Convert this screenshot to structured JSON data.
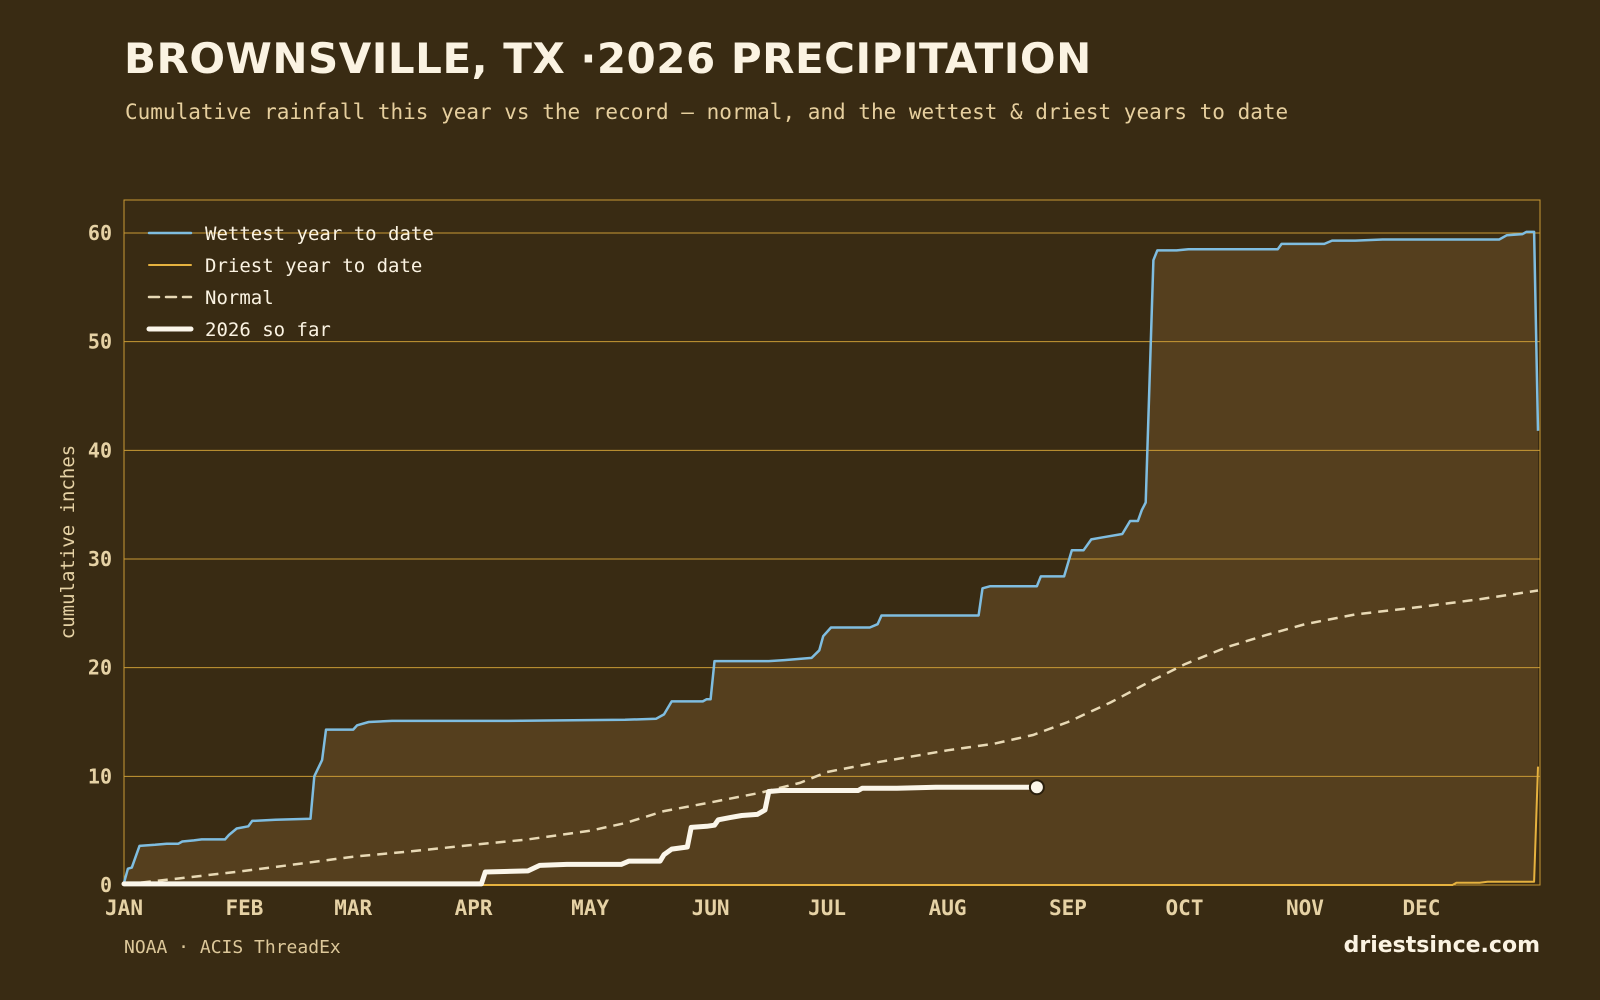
{
  "header": {
    "title": "BROWNSVILLE, TX ·2026 PRECIPITATION",
    "subtitle": "Cumulative rainfall this year vs the record — normal, and the wettest & driest years to date"
  },
  "footer": {
    "source": "NOAA · ACIS ThreadEx",
    "brand": "driestsince.com"
  },
  "colors": {
    "background": "#392b13",
    "grid": "#c99a35",
    "wettest": "#7fbde0",
    "driest": "#e6b23f",
    "normal": "#e8d9b5",
    "current": "#fbf6ea",
    "fill": "#553f1e"
  },
  "chart_data": {
    "type": "line",
    "ylabel": "cumulative inches",
    "xlabel": "",
    "ylim": [
      0,
      63
    ],
    "yticks": [
      0,
      10,
      20,
      30,
      40,
      50,
      60
    ],
    "x_unit": "day of year",
    "xlim": [
      1,
      365
    ],
    "month_ticks": [
      {
        "label": "JAN",
        "day": 1
      },
      {
        "label": "FEB",
        "day": 32
      },
      {
        "label": "MAR",
        "day": 60
      },
      {
        "label": "APR",
        "day": 91
      },
      {
        "label": "MAY",
        "day": 121
      },
      {
        "label": "JUN",
        "day": 152
      },
      {
        "label": "JUL",
        "day": 182
      },
      {
        "label": "AUG",
        "day": 213
      },
      {
        "label": "SEP",
        "day": 244
      },
      {
        "label": "OCT",
        "day": 274
      },
      {
        "label": "NOV",
        "day": 305
      },
      {
        "label": "DEC",
        "day": 335
      }
    ],
    "grid": true,
    "legend_position": "top-left",
    "series": [
      {
        "name": "Wettest year to date",
        "style": "solid",
        "points": [
          [
            1,
            0.2
          ],
          [
            2,
            1.5
          ],
          [
            3,
            1.6
          ],
          [
            5,
            3.6
          ],
          [
            9,
            3.7
          ],
          [
            12,
            3.8
          ],
          [
            15,
            3.8
          ],
          [
            16,
            4.0
          ],
          [
            19,
            4.1
          ],
          [
            21,
            4.2
          ],
          [
            27,
            4.2
          ],
          [
            28,
            4.6
          ],
          [
            30,
            5.2
          ],
          [
            33,
            5.4
          ],
          [
            34,
            5.9
          ],
          [
            40,
            6.0
          ],
          [
            49,
            6.1
          ],
          [
            50,
            10.0
          ],
          [
            52,
            11.5
          ],
          [
            53,
            14.3
          ],
          [
            60,
            14.3
          ],
          [
            61,
            14.7
          ],
          [
            64,
            15.0
          ],
          [
            70,
            15.1
          ],
          [
            100,
            15.1
          ],
          [
            130,
            15.2
          ],
          [
            138,
            15.3
          ],
          [
            140,
            15.7
          ],
          [
            142,
            16.9
          ],
          [
            150,
            16.9
          ],
          [
            151,
            17.1
          ],
          [
            152,
            17.1
          ],
          [
            153,
            20.6
          ],
          [
            167,
            20.6
          ],
          [
            171,
            20.7
          ],
          [
            178,
            20.9
          ],
          [
            180,
            21.6
          ],
          [
            181,
            22.9
          ],
          [
            183,
            23.7
          ],
          [
            193,
            23.7
          ],
          [
            195,
            24.0
          ],
          [
            196,
            24.8
          ],
          [
            221,
            24.8
          ],
          [
            222,
            27.3
          ],
          [
            224,
            27.5
          ],
          [
            236,
            27.5
          ],
          [
            237,
            28.4
          ],
          [
            243,
            28.4
          ],
          [
            245,
            30.8
          ],
          [
            248,
            30.8
          ],
          [
            250,
            31.8
          ],
          [
            253,
            32.0
          ],
          [
            258,
            32.3
          ],
          [
            260,
            33.5
          ],
          [
            262,
            33.5
          ],
          [
            263,
            34.5
          ],
          [
            264,
            35.2
          ],
          [
            266,
            57.5
          ],
          [
            267,
            58.4
          ],
          [
            272,
            58.4
          ],
          [
            275,
            58.5
          ],
          [
            298,
            58.5
          ],
          [
            299,
            59.0
          ],
          [
            310,
            59.0
          ],
          [
            312,
            59.3
          ],
          [
            318,
            59.3
          ],
          [
            325,
            59.4
          ],
          [
            355,
            59.4
          ],
          [
            357,
            59.8
          ],
          [
            361,
            59.9
          ],
          [
            362,
            60.1
          ],
          [
            364,
            60.1
          ],
          [
            365,
            41.8
          ]
        ]
      },
      {
        "name": "Driest year to date",
        "style": "solid",
        "points": [
          [
            1,
            0
          ],
          [
            343,
            0
          ],
          [
            344,
            0.2
          ],
          [
            350,
            0.2
          ],
          [
            352,
            0.3
          ],
          [
            364,
            0.3
          ],
          [
            365,
            10.9
          ]
        ]
      },
      {
        "name": "Normal",
        "style": "dashed",
        "points": [
          [
            1,
            0.05
          ],
          [
            15,
            0.6
          ],
          [
            32,
            1.3
          ],
          [
            45,
            1.9
          ],
          [
            60,
            2.6
          ],
          [
            75,
            3.1
          ],
          [
            91,
            3.7
          ],
          [
            105,
            4.2
          ],
          [
            121,
            5.0
          ],
          [
            130,
            5.7
          ],
          [
            140,
            6.8
          ],
          [
            152,
            7.6
          ],
          [
            165,
            8.5
          ],
          [
            175,
            9.4
          ],
          [
            182,
            10.4
          ],
          [
            195,
            11.3
          ],
          [
            205,
            11.9
          ],
          [
            213,
            12.4
          ],
          [
            225,
            13.0
          ],
          [
            235,
            13.8
          ],
          [
            244,
            15.0
          ],
          [
            255,
            16.8
          ],
          [
            265,
            18.7
          ],
          [
            274,
            20.3
          ],
          [
            285,
            21.9
          ],
          [
            295,
            23.0
          ],
          [
            305,
            24.0
          ],
          [
            318,
            24.9
          ],
          [
            335,
            25.6
          ],
          [
            350,
            26.3
          ],
          [
            365,
            27.1
          ]
        ]
      },
      {
        "name": "2026 so far",
        "style": "bold",
        "points": [
          [
            1,
            0.1
          ],
          [
            93,
            0.1
          ],
          [
            94,
            1.2
          ],
          [
            105,
            1.3
          ],
          [
            108,
            1.8
          ],
          [
            115,
            1.9
          ],
          [
            129,
            1.9
          ],
          [
            131,
            2.2
          ],
          [
            139,
            2.2
          ],
          [
            140,
            2.8
          ],
          [
            142,
            3.3
          ],
          [
            146,
            3.5
          ],
          [
            147,
            5.3
          ],
          [
            151,
            5.4
          ],
          [
            153,
            5.5
          ],
          [
            154,
            6.0
          ],
          [
            157,
            6.2
          ],
          [
            160,
            6.4
          ],
          [
            164,
            6.5
          ],
          [
            166,
            6.9
          ],
          [
            167,
            8.6
          ],
          [
            170,
            8.7
          ],
          [
            190,
            8.7
          ],
          [
            191,
            8.9
          ],
          [
            200,
            8.9
          ],
          [
            210,
            9.0
          ],
          [
            236,
            9.0
          ]
        ]
      }
    ]
  }
}
